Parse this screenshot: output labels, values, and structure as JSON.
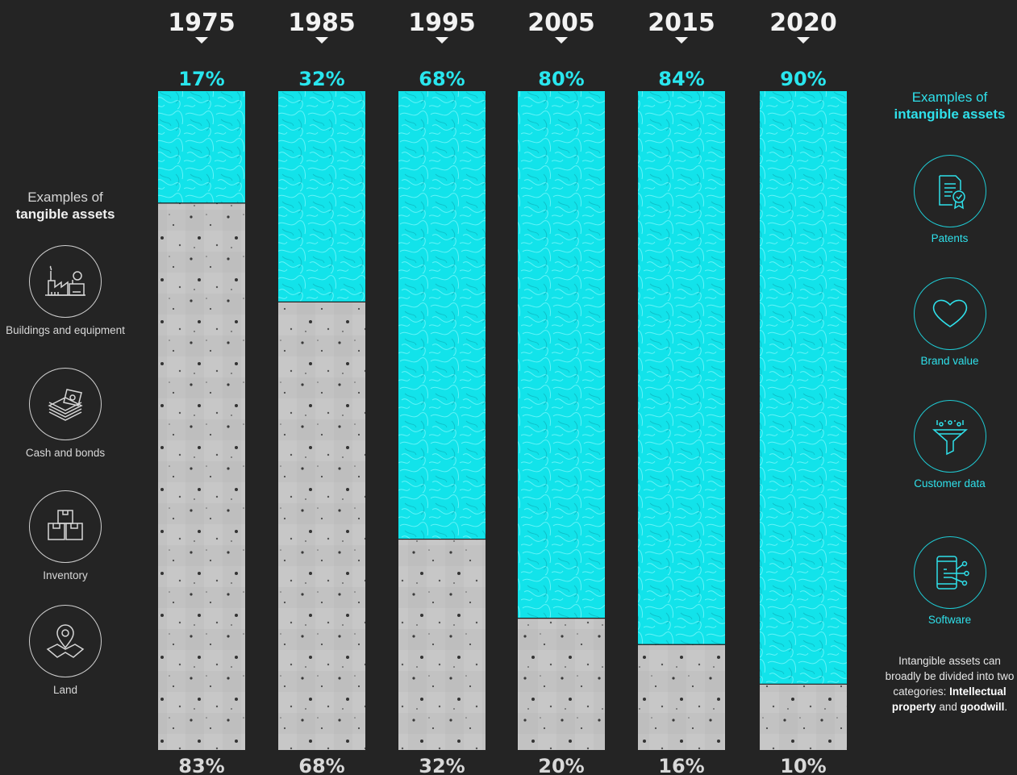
{
  "chart_data": {
    "type": "bar",
    "stacked": true,
    "categories": [
      "1975",
      "1985",
      "1995",
      "2005",
      "2015",
      "2020"
    ],
    "series": [
      {
        "values": [
          17,
          32,
          68,
          80,
          84,
          90
        ],
        "color": "#12e3ea"
      },
      {
        "values": [
          83,
          68,
          32,
          20,
          16,
          10
        ],
        "color": "#c4c4c4"
      }
    ],
    "top_labels": [
      "17%",
      "32%",
      "68%",
      "80%",
      "84%",
      "90%"
    ],
    "bottom_labels": [
      "83%",
      "68%",
      "32%",
      "20%",
      "16%",
      "10%"
    ],
    "ylim": [
      0,
      100
    ]
  },
  "tangible": {
    "heading_light": "Examples of",
    "heading_bold": "tangible assets",
    "items": [
      {
        "label": "Buildings and equipment",
        "icon": "factory-icon"
      },
      {
        "label": "Cash and bonds",
        "icon": "cash-stack-icon"
      },
      {
        "label": "Inventory",
        "icon": "boxes-icon"
      },
      {
        "label": "Land",
        "icon": "map-pin-icon"
      }
    ]
  },
  "intangible": {
    "heading_light": "Examples of",
    "heading_bold": "intangible assets",
    "items": [
      {
        "label": "Patents",
        "icon": "certificate-icon"
      },
      {
        "label": "Brand value",
        "icon": "heart-icon"
      },
      {
        "label": "Customer data",
        "icon": "funnel-icon"
      },
      {
        "label": "Software",
        "icon": "mobile-code-icon"
      }
    ],
    "note_start": "Intangible assets can broadly be divided into two categories: ",
    "note_bold_1": "Intellectual property",
    "note_mid": " and ",
    "note_bold_2": "goodwill",
    "note_end": "."
  },
  "colors": {
    "background": "#242424",
    "intangible": "#12e3ea",
    "tangible": "#c4c4c4"
  }
}
